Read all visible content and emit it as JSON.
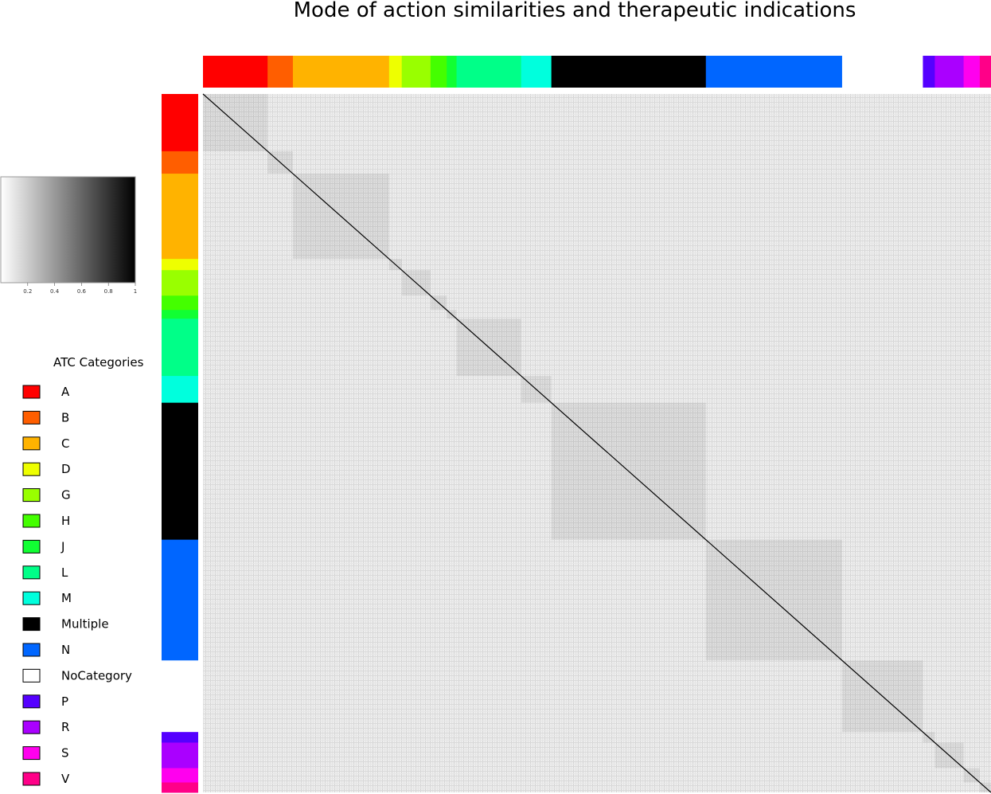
{
  "chart_data": {
    "type": "heatmap",
    "title": "Mode of action similarities and therapeutic indications",
    "color_scale": {
      "low_color": "#ffffff",
      "high_color": "#000000",
      "ticks": [
        "0.2",
        "0.4",
        "0.6",
        "0.8",
        "1"
      ]
    },
    "legend": {
      "title": "ATC Categories",
      "placement": "left"
    },
    "categories": [
      {
        "name": "A",
        "color": "#ff0000",
        "share": 0.092
      },
      {
        "name": "B",
        "color": "#ff5e00",
        "share": 0.036
      },
      {
        "name": "C",
        "color": "#ffb300",
        "share": 0.137
      },
      {
        "name": "D",
        "color": "#eeff00",
        "share": 0.018
      },
      {
        "name": "G",
        "color": "#99ff00",
        "share": 0.041
      },
      {
        "name": "H",
        "color": "#44ff00",
        "share": 0.023
      },
      {
        "name": "J",
        "color": "#11ff33",
        "share": 0.014
      },
      {
        "name": "L",
        "color": "#00ff88",
        "share": 0.092
      },
      {
        "name": "M",
        "color": "#00ffdd",
        "share": 0.043
      },
      {
        "name": "Multiple",
        "color": "#000000",
        "share": 0.22
      },
      {
        "name": "N",
        "color": "#0066ff",
        "share": 0.194
      },
      {
        "name": "NoCategory",
        "color": "#ffffff",
        "share": 0.115
      },
      {
        "name": "P",
        "color": "#5500ff",
        "share": 0.017
      },
      {
        "name": "R",
        "color": "#aa00ff",
        "share": 0.041
      },
      {
        "name": "S",
        "color": "#ff00ee",
        "share": 0.023
      },
      {
        "name": "V",
        "color": "#ff0088",
        "share": 0.016
      }
    ]
  }
}
